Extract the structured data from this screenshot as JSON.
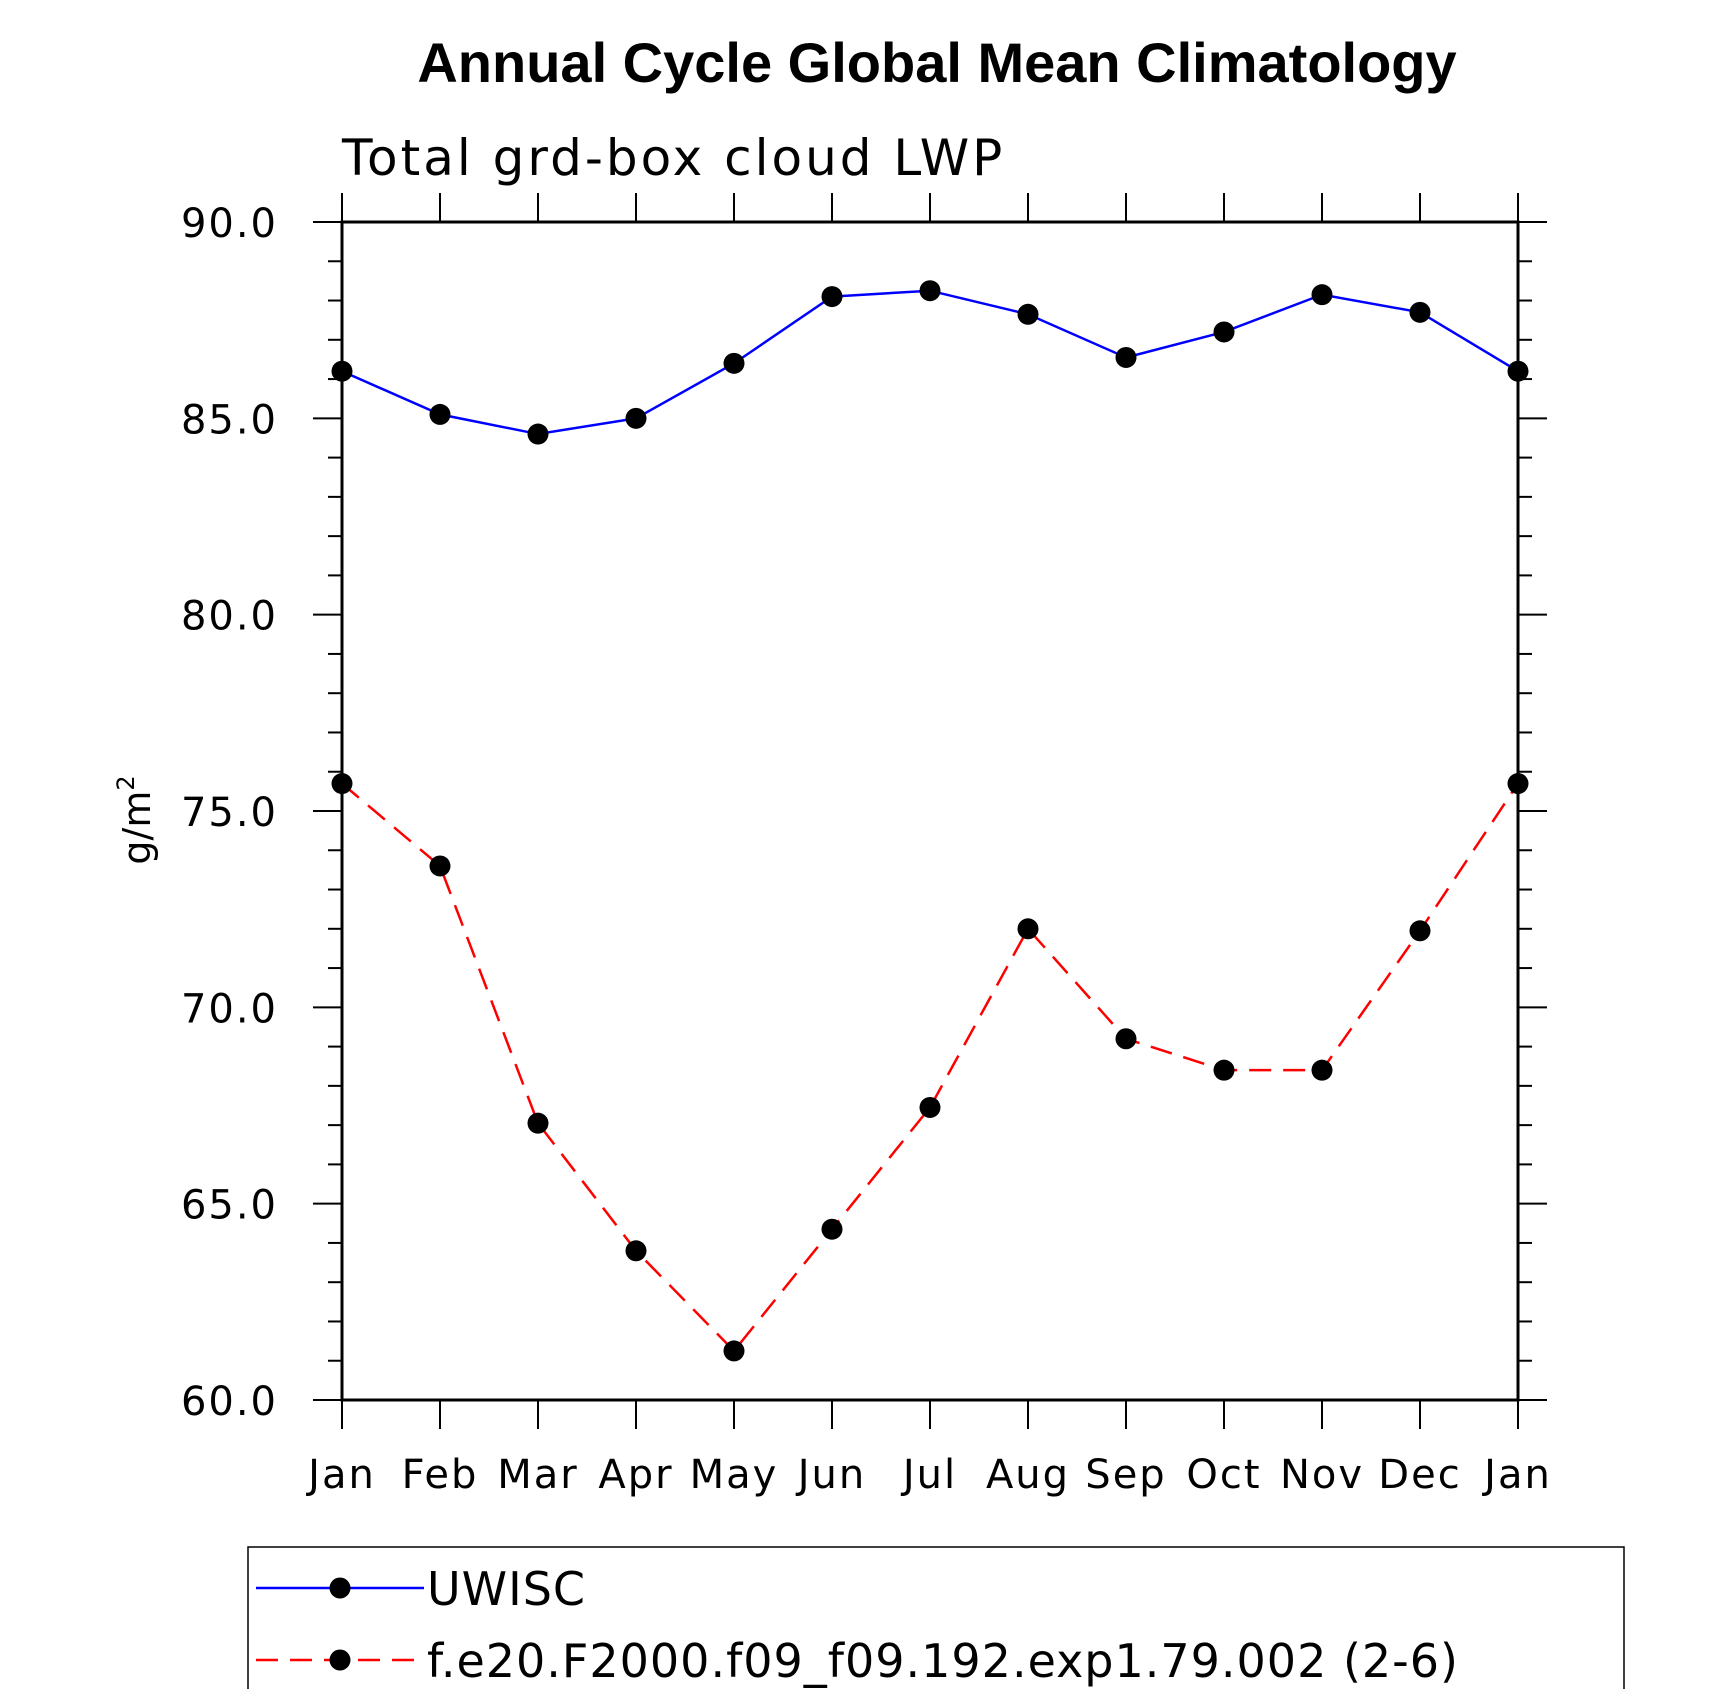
{
  "chart_data": {
    "type": "line",
    "title": "Annual Cycle Global Mean Climatology",
    "subtitle": "Total grd-box cloud LWP",
    "ylabel": "g/m",
    "ylabel_superscript": "2",
    "xlabel": "",
    "ylim": [
      60,
      90
    ],
    "yticks": [
      60,
      65,
      70,
      75,
      80,
      85,
      90
    ],
    "ytick_labels": [
      "60.0",
      "65.0",
      "70.0",
      "75.0",
      "80.0",
      "85.0",
      "90.0"
    ],
    "y_minor_step": 1,
    "categories": [
      "Jan",
      "Feb",
      "Mar",
      "Apr",
      "May",
      "Jun",
      "Jul",
      "Aug",
      "Sep",
      "Oct",
      "Nov",
      "Dec",
      "Jan"
    ],
    "grid": false,
    "legend_position": "bottom",
    "series": [
      {
        "name": "UWISC",
        "color": "#0000ff",
        "line_style": "solid",
        "marker": "circle",
        "values": [
          86.2,
          85.1,
          84.6,
          85.0,
          86.4,
          88.1,
          88.25,
          87.65,
          86.55,
          87.2,
          88.15,
          87.7,
          86.2
        ]
      },
      {
        "name": "f.e20.F2000.f09_f09.192.exp1.79.002 (2-6)",
        "color": "#ff0000",
        "line_style": "dashed",
        "marker": "circle",
        "values": [
          75.7,
          73.6,
          67.05,
          63.8,
          61.25,
          64.35,
          67.45,
          72.0,
          69.2,
          68.4,
          68.4,
          71.95,
          75.7
        ]
      }
    ]
  }
}
